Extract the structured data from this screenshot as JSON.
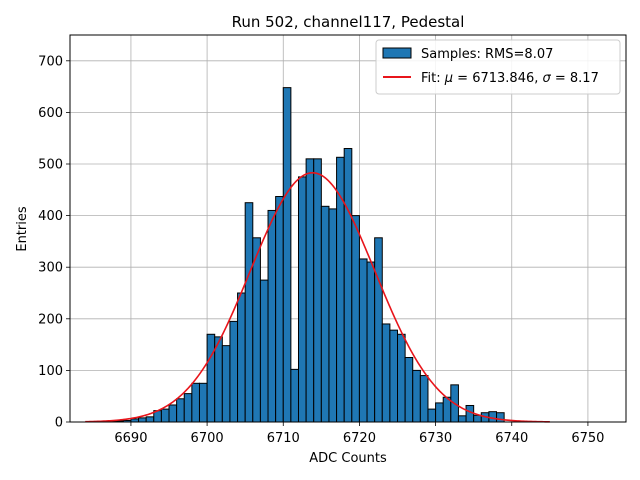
{
  "chart_data": {
    "type": "bar",
    "title": "Run 502, channel117, Pedestal",
    "xlabel": "ADC Counts",
    "ylabel": "Entries",
    "xlim": [
      6682,
      6755
    ],
    "ylim": [
      0,
      750
    ],
    "xticks": [
      6690,
      6700,
      6710,
      6720,
      6730,
      6740,
      6750
    ],
    "yticks": [
      0,
      100,
      200,
      300,
      400,
      500,
      600,
      700
    ],
    "grid": true,
    "legend_position": "top-right",
    "colors": {
      "bars": "#1f77b4",
      "bar_edge": "#000000",
      "fit": "#e8151b",
      "grid": "#b0b0b0"
    },
    "series": [
      {
        "name": "Samples: RMS=8.07",
        "kind": "histogram",
        "bin_width": 1,
        "x": [
          6685,
          6686,
          6687,
          6688,
          6689,
          6690,
          6691,
          6692,
          6693,
          6694,
          6695,
          6696,
          6697,
          6698,
          6699,
          6700,
          6701,
          6702,
          6703,
          6704,
          6705,
          6706,
          6707,
          6708,
          6709,
          6710,
          6711,
          6712,
          6713,
          6714,
          6715,
          6716,
          6717,
          6718,
          6719,
          6720,
          6721,
          6722,
          6723,
          6724,
          6725,
          6726,
          6727,
          6728,
          6729,
          6730,
          6731,
          6732,
          6733,
          6734,
          6735,
          6736,
          6737,
          6738
        ],
        "values": [
          1,
          1,
          1,
          2,
          3,
          6,
          8,
          10,
          22,
          25,
          33,
          45,
          55,
          75,
          75,
          170,
          165,
          148,
          195,
          250,
          425,
          357,
          275,
          410,
          437,
          648,
          102,
          475,
          510,
          510,
          418,
          413,
          513,
          530,
          400,
          316,
          310,
          357,
          190,
          178,
          170,
          125,
          100,
          90,
          25,
          37,
          48,
          72,
          12,
          32,
          13,
          18,
          20,
          18
        ]
      },
      {
        "name": "Fit: $\\mu$ = 6713.846, $\\sigma$ = 8.17",
        "kind": "gaussian",
        "mu": 6713.846,
        "sigma": 8.17,
        "amplitude": 483,
        "x_range": [
          6684,
          6745
        ]
      }
    ],
    "legend": [
      {
        "label": "Samples: RMS=8.07",
        "kind": "patch"
      },
      {
        "label_prefix": "Fit: ",
        "mu_symbol": "μ",
        "mu_value": " = 6713.846, ",
        "sigma_symbol": "σ",
        "sigma_value": " = 8.17",
        "kind": "line"
      }
    ]
  }
}
